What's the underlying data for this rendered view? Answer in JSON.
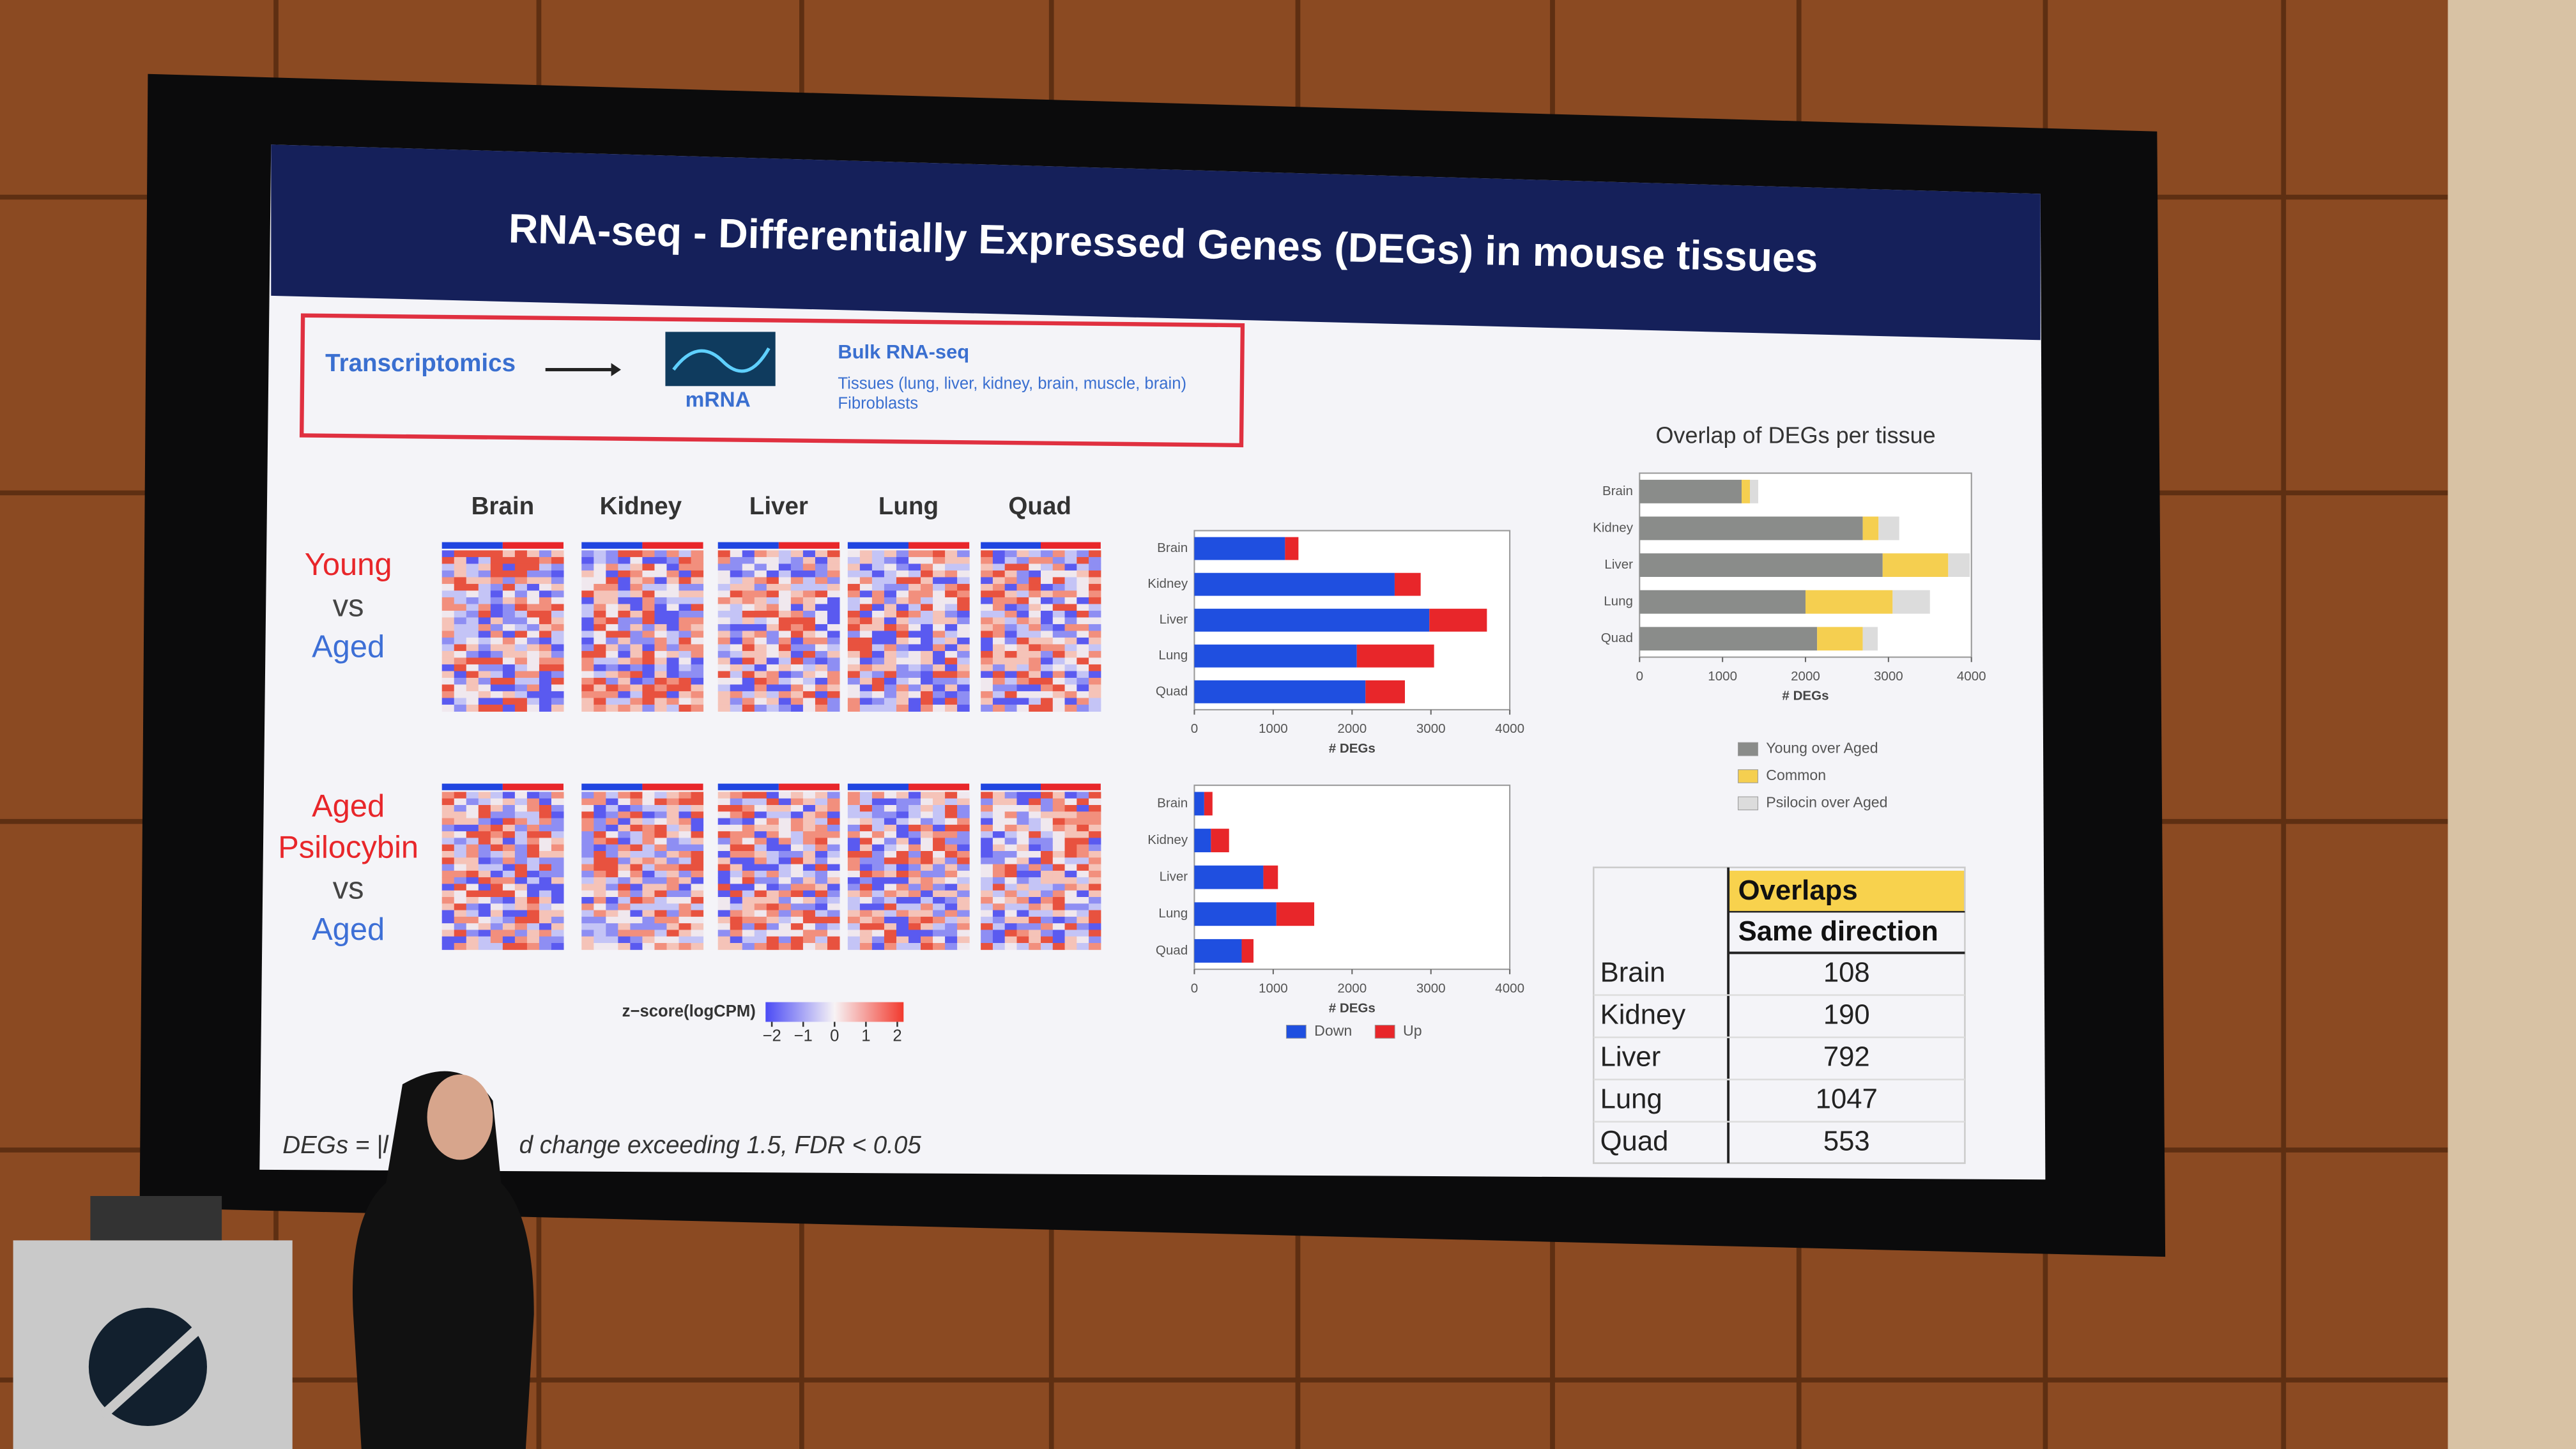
{
  "slide": {
    "title": "RNA-seq - Differentially Expressed Genes (DEGs) in mouse tissues",
    "method": {
      "left": "Transcriptomics",
      "icon_label": "mRNA",
      "heading": "Bulk RNA-seq",
      "tissues": "Tissues (lung, liver, kidney, brain, muscle, brain)",
      "cells": "Fibroblasts"
    },
    "heatmaps": {
      "columns": [
        "Brain",
        "Kidney",
        "Liver",
        "Lung",
        "Quad"
      ],
      "rows": [
        {
          "lines": [
            "Young",
            "vs",
            "Aged"
          ],
          "colors": [
            "#e8262a",
            "#444444",
            "#3d6fd6"
          ]
        },
        {
          "lines": [
            "Aged",
            "Psilocybin",
            "vs",
            "Aged"
          ],
          "colors": [
            "#e8262a",
            "#e8262a",
            "#444444",
            "#3d6fd6"
          ]
        }
      ],
      "colorbar": {
        "label": "z−score(logCPM)",
        "lim": [
          -2.2,
          2.2
        ],
        "ticks": [
          {
            "value": -2,
            "label": "−2"
          },
          {
            "value": -1,
            "label": "−1"
          },
          0,
          1,
          2
        ]
      }
    },
    "footnote": [
      "DEGs = |l",
      "d change exceeding 1.5, FDR < 0.05"
    ]
  },
  "chart_data": [
    {
      "type": "bar",
      "orientation": "horizontal",
      "stacked": true,
      "categories": [
        "Brain",
        "Kidney",
        "Liver",
        "Lung",
        "Quad"
      ],
      "series": [
        {
          "color": "#1f4fe0",
          "values": [
            1150,
            2540,
            2980,
            2060,
            2170
          ]
        },
        {
          "color": "#e8262a",
          "values": [
            170,
            330,
            730,
            980,
            500
          ]
        }
      ],
      "xlim": [
        0,
        4000
      ],
      "xticks": [
        0,
        1000,
        2000,
        3000,
        4000
      ],
      "xlabel": "# DEGs"
    },
    {
      "type": "bar",
      "orientation": "horizontal",
      "stacked": true,
      "categories": [
        "Brain",
        "Kidney",
        "Liver",
        "Lung",
        "Quad"
      ],
      "series": [
        {
          "name": "Down",
          "color": "#1f4fe0",
          "values": [
            125,
            210,
            875,
            1040,
            600
          ]
        },
        {
          "name": "Up",
          "color": "#e8262a",
          "values": [
            105,
            230,
            185,
            480,
            150
          ]
        }
      ],
      "xlim": [
        0,
        4000
      ],
      "xticks": [
        0,
        1000,
        2000,
        3000,
        4000
      ],
      "xlabel": "# DEGs",
      "legend": "bottom"
    },
    {
      "type": "bar",
      "orientation": "horizontal",
      "stacked": true,
      "title": "Overlap of DEGs per tissue",
      "categories": [
        "Brain",
        "Kidney",
        "Liver",
        "Lung",
        "Quad"
      ],
      "series": [
        {
          "name": "Young over Aged",
          "color": "#8a8c8a",
          "values": [
            1230,
            2690,
            2930,
            2000,
            2140
          ]
        },
        {
          "name": "Common",
          "color": "#f5cf50",
          "values": [
            100,
            190,
            790,
            1050,
            550
          ]
        },
        {
          "name": "Psilocin over Aged",
          "color": "#dcdcdc",
          "values": [
            100,
            250,
            260,
            450,
            180
          ]
        }
      ],
      "xlim": [
        0,
        4000
      ],
      "xticks": [
        0,
        1000,
        2000,
        3000,
        4000
      ],
      "xlabel": "# DEGs",
      "legend": "bottom"
    }
  ],
  "table": {
    "header": [
      "Overlaps",
      "Same direction"
    ],
    "rows": [
      [
        "Brain",
        108
      ],
      [
        "Kidney",
        190
      ],
      [
        "Liver",
        792
      ],
      [
        "Lung",
        1047
      ],
      [
        "Quad",
        553
      ]
    ]
  }
}
